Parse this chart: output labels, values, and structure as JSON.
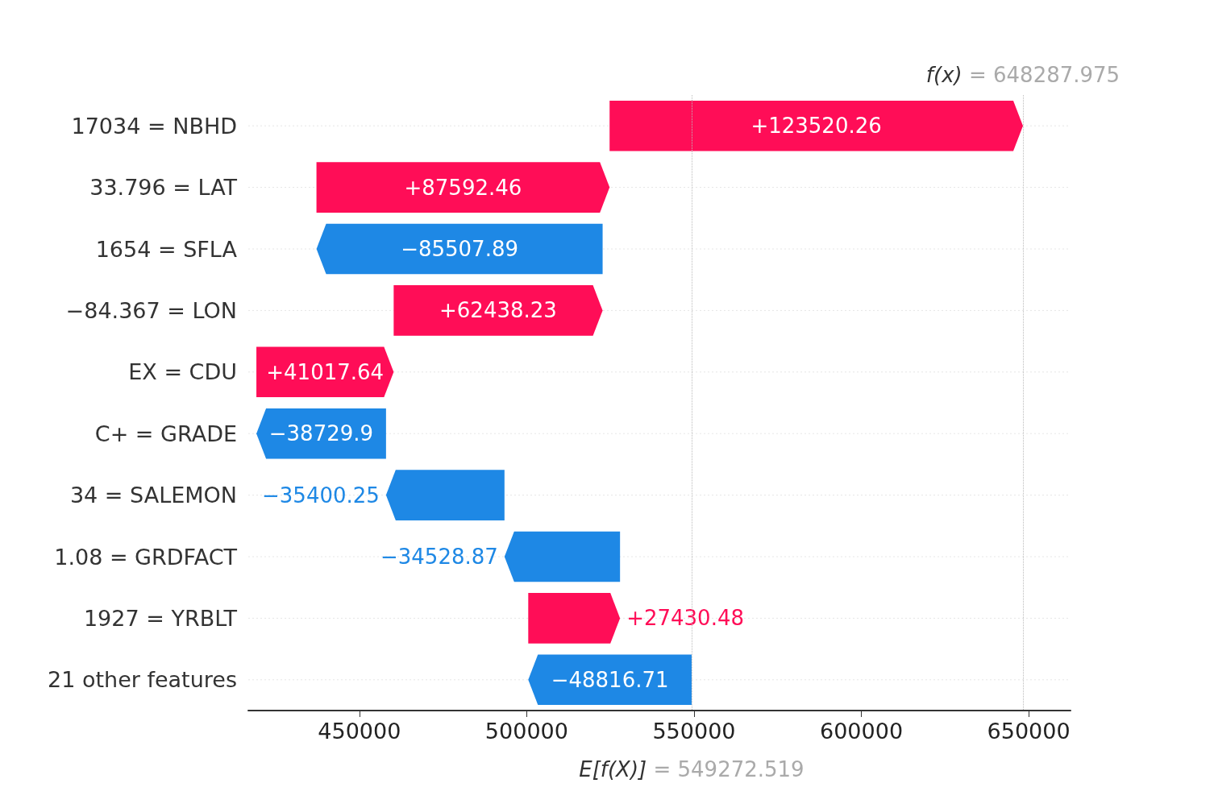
{
  "chart_data": {
    "type": "bar",
    "orientation": "horizontal",
    "categories": [
      "17034 = NBHD",
      "33.796 = LAT",
      "1654 = SFLA",
      "−84.367 = LON",
      "EX = CDU",
      "C+ = GRADE",
      "34 = SALEMON",
      "1.08 = GRDFACT",
      "1927 = YRBLT",
      "21 other features"
    ],
    "values": [
      123520.26,
      87592.46,
      -85507.89,
      62438.23,
      41017.64,
      -38729.9,
      -35400.25,
      -34528.87,
      27430.48,
      -48816.71
    ],
    "base": [
      524767.71,
      437175.25,
      522683.14,
      460244.91,
      419227.27,
      457957.17,
      493357.42,
      527886.29,
      500455.81,
      549272.519
    ],
    "colors": [
      "#ff0d57",
      "#ff0d57",
      "#1e88e5",
      "#ff0d57",
      "#ff0d57",
      "#1e88e5",
      "#1e88e5",
      "#1e88e5",
      "#ff0d57",
      "#1e88e5"
    ],
    "value_labels": [
      "+123520.26",
      "+87592.46",
      "−85507.89",
      "+62438.23",
      "+41017.64",
      "−38729.9",
      "−35400.25",
      "−34528.87",
      "+27430.48",
      "−48816.71"
    ],
    "xlim": [
      416800,
      662500
    ],
    "xticks": [
      450000,
      500000,
      550000,
      600000,
      650000
    ],
    "ref_lines": [
      {
        "axis": "x",
        "value": 648287.975,
        "label": "f(x) = 648287.975",
        "line_style": "dotted"
      },
      {
        "axis": "x",
        "value": 549272.519,
        "label": "E[f(X)] = 549272.519",
        "line_style": "dotted"
      }
    ],
    "grid": "y"
  }
}
